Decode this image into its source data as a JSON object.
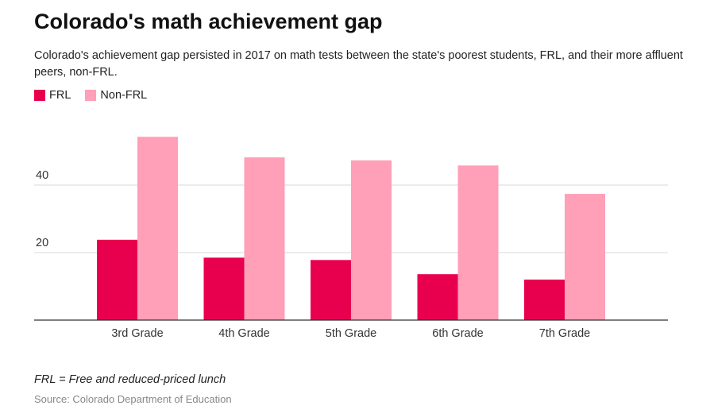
{
  "header": {
    "title": "Colorado's math achievement gap",
    "subtitle": "Colorado's achievement gap persisted in 2017 on math tests between the state's poorest students, FRL, and their more affluent peers, non-FRL."
  },
  "footer": {
    "note": "FRL = Free and reduced-priced lunch",
    "source": "Source: Colorado Department of Education"
  },
  "chart_data": {
    "type": "bar",
    "title": "Colorado's math achievement gap",
    "subtitle": "Colorado's achievement gap persisted in 2017 on math tests between the state's poorest students, FRL, and their more affluent peers, non-FRL.",
    "xlabel": "",
    "ylabel": "",
    "categories": [
      "3rd Grade",
      "4th Grade",
      "5th Grade",
      "6th Grade",
      "7th Grade"
    ],
    "series": [
      {
        "name": "FRL",
        "color": "#e8004f",
        "values": [
          23.8,
          18.5,
          17.8,
          13.6,
          12.0
        ]
      },
      {
        "name": "Non-FRL",
        "color": "#ff9fb8",
        "values": [
          54.3,
          48.2,
          47.3,
          45.8,
          37.4
        ]
      }
    ],
    "yticks": [
      20,
      40
    ],
    "ylim": [
      0,
      60
    ],
    "grid": true,
    "legend": "top-left"
  }
}
